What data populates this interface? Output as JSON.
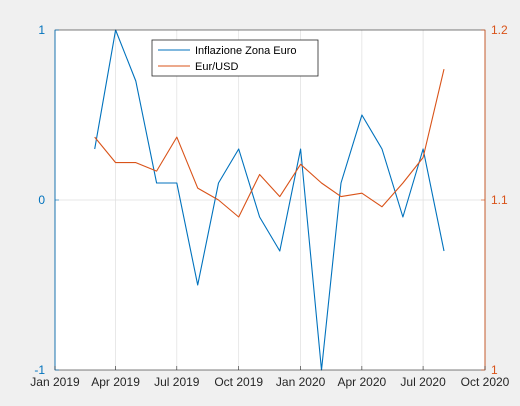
{
  "chart_data": {
    "type": "line",
    "title": "",
    "xlabel": "",
    "ylabel_left": "",
    "ylabel_right": "",
    "x_ticks": [
      "Jan 2019",
      "Apr 2019",
      "Jul 2019",
      "Oct 2019",
      "Jan 2020",
      "Apr 2020",
      "Jul 2020",
      "Oct 2020"
    ],
    "x_dates": [
      "2019-01-01",
      "2019-04-01",
      "2019-07-01",
      "2019-10-01",
      "2020-01-01",
      "2020-04-01",
      "2020-07-01",
      "2020-10-01"
    ],
    "y_left_ticks": [
      "-1",
      "0",
      "1"
    ],
    "y_left_range": [
      -1,
      1
    ],
    "y_right_ticks": [
      "1",
      "1.1",
      "1.2"
    ],
    "y_right_range": [
      1.0,
      1.2
    ],
    "grid": true,
    "legend": "top-center",
    "series": [
      {
        "name": "Inflazione Zona Euro",
        "axis": "left",
        "color": "#0072bd",
        "dates": [
          "2019-03-01",
          "2019-04-01",
          "2019-05-01",
          "2019-06-01",
          "2019-07-01",
          "2019-08-01",
          "2019-09-01",
          "2019-10-01",
          "2019-11-01",
          "2019-12-01",
          "2020-01-01",
          "2020-02-01",
          "2020-03-01",
          "2020-04-01",
          "2020-05-01",
          "2020-06-01",
          "2020-07-01",
          "2020-08-01"
        ],
        "values": [
          0.3,
          1.0,
          0.7,
          0.1,
          0.1,
          -0.5,
          0.1,
          0.3,
          -0.1,
          -0.3,
          0.3,
          -1.0,
          0.1,
          0.5,
          0.3,
          -0.1,
          0.3,
          -0.3
        ]
      },
      {
        "name": "Eur/USD",
        "axis": "right",
        "color": "#d95319",
        "dates": [
          "2019-03-01",
          "2019-04-01",
          "2019-05-01",
          "2019-06-01",
          "2019-07-01",
          "2019-08-01",
          "2019-09-01",
          "2019-10-01",
          "2019-11-01",
          "2019-12-01",
          "2020-01-01",
          "2020-02-01",
          "2020-03-01",
          "2020-04-01",
          "2020-05-01",
          "2020-06-01",
          "2020-07-01",
          "2020-08-01"
        ],
        "values": [
          1.137,
          1.122,
          1.122,
          1.117,
          1.137,
          1.107,
          1.1,
          1.09,
          1.115,
          1.102,
          1.121,
          1.11,
          1.102,
          1.104,
          1.096,
          1.11,
          1.125,
          1.177
        ]
      }
    ]
  }
}
